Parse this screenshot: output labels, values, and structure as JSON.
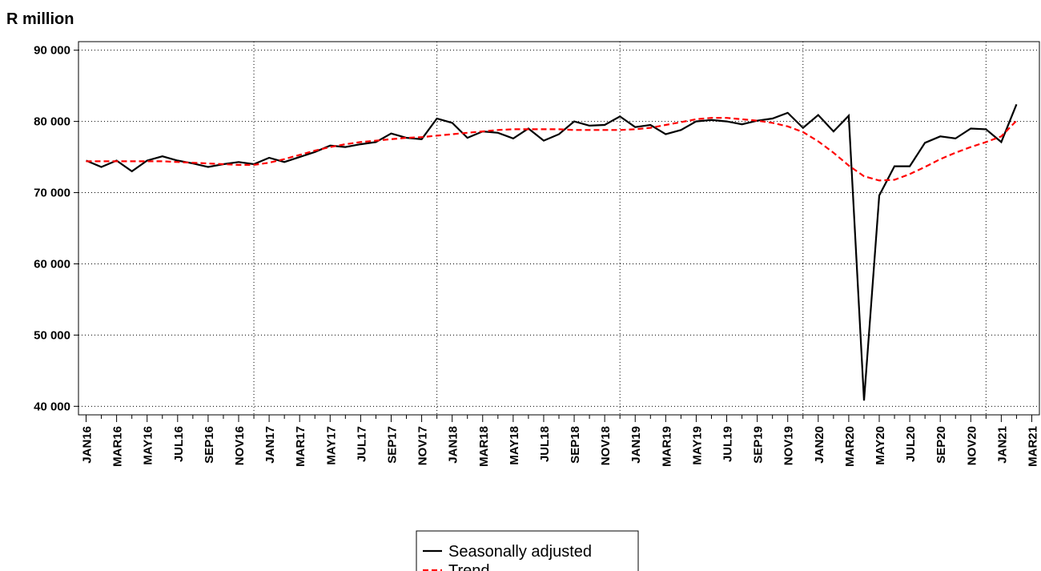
{
  "chart_data": {
    "type": "line",
    "title": "R million",
    "categories": [
      "JAN16",
      null,
      "MAR16",
      null,
      "MAY16",
      null,
      "JUL16",
      null,
      "SEP16",
      null,
      "NOV16",
      null,
      "JAN17",
      null,
      "MAR17",
      null,
      "MAY17",
      null,
      "JUL17",
      null,
      "SEP17",
      null,
      "NOV17",
      null,
      "JAN18",
      null,
      "MAR18",
      null,
      "MAY18",
      null,
      "JUL18",
      null,
      "SEP18",
      null,
      "NOV18",
      null,
      "JAN19",
      null,
      "MAR19",
      null,
      "MAY19",
      null,
      "JUL19",
      null,
      "SEP19",
      null,
      "NOV19",
      null,
      "JAN20",
      null,
      "MAR20",
      null,
      "MAY20",
      null,
      "JUL20",
      null,
      "SEP20",
      null,
      "NOV20",
      null,
      "JAN21",
      null,
      "MAR21"
    ],
    "series": [
      {
        "name": "Seasonally adjusted",
        "color": "#000000",
        "dash": "solid",
        "values": [
          74500,
          73600,
          74500,
          73000,
          74500,
          75100,
          74500,
          74100,
          73600,
          74000,
          74300,
          74000,
          74900,
          74300,
          75000,
          75700,
          76600,
          76400,
          76800,
          77100,
          78300,
          77700,
          77500,
          80400,
          79800,
          77700,
          78600,
          78400,
          77600,
          79000,
          77300,
          78200,
          80000,
          79400,
          79500,
          80700,
          79200,
          79500,
          78200,
          78800,
          80000,
          80200,
          80000,
          79600,
          80100,
          80400,
          81200,
          79100,
          80900,
          78600,
          80800,
          40800,
          69600,
          73700,
          73700,
          77000,
          77900,
          77600,
          79000,
          78900,
          77100,
          82400,
          null
        ]
      },
      {
        "name": "Trend",
        "color": "#ff0000",
        "dash": "dashed",
        "values": [
          74400,
          74400,
          74400,
          74400,
          74400,
          74400,
          74300,
          74200,
          74100,
          74000,
          73900,
          73900,
          74200,
          74700,
          75300,
          75900,
          76400,
          76800,
          77100,
          77300,
          77500,
          77700,
          77800,
          78000,
          78200,
          78400,
          78600,
          78800,
          78900,
          78900,
          78900,
          78900,
          78800,
          78800,
          78800,
          78800,
          78900,
          79100,
          79500,
          79900,
          80300,
          80500,
          80500,
          80300,
          80100,
          79800,
          79300,
          78500,
          77200,
          75600,
          73800,
          72300,
          71700,
          71800,
          72600,
          73600,
          74700,
          75600,
          76400,
          77100,
          77900,
          80100,
          null
        ]
      }
    ],
    "ylim": [
      38800,
      91200
    ],
    "yticks": [
      {
        "value": 40000,
        "label": "40 000"
      },
      {
        "value": 50000,
        "label": "50 000"
      },
      {
        "value": 60000,
        "label": "60 000"
      },
      {
        "value": 70000,
        "label": "70 000"
      },
      {
        "value": 80000,
        "label": "80 000"
      },
      {
        "value": 90000,
        "label": "90 000"
      }
    ],
    "grid": true
  }
}
